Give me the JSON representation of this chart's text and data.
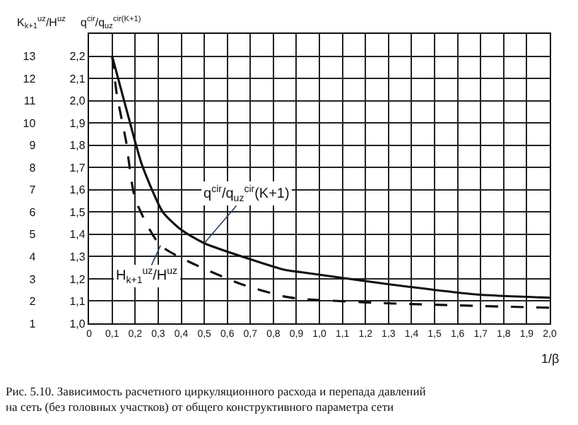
{
  "chart_data": {
    "type": "line",
    "ylabel": "q$^{cir}$/q$_{uz}$$^{cir(K+1)}$",
    "y2label": "K$_{k+1}$$^{uz}$/H$^{uz}$",
    "xlabel": "1/β",
    "x": [
      0.1,
      0.17,
      0.23,
      0.32,
      0.4,
      0.5,
      0.85,
      0.92,
      1.27,
      1.68,
      2.0
    ],
    "series": [
      {
        "color": "#111111",
        "line_style": "solid",
        "values": [
          2.2,
          1.93,
          1.71,
          1.5,
          1.42,
          1.36,
          1.24,
          1.23,
          1.18,
          1.13,
          1.115
        ]
      },
      {
        "color": "#111111",
        "line_style": "dashed",
        "x": [
          0.1,
          0.12,
          0.16,
          0.2,
          0.31,
          0.65,
          0.85,
          0.92,
          1.3,
          2.0
        ],
        "values": [
          2.2,
          2.03,
          1.82,
          1.56,
          1.35,
          1.18,
          1.12,
          1.11,
          1.09,
          1.07
        ]
      }
    ],
    "xlim": [
      0,
      2.0
    ],
    "xticks": [
      0,
      {
        "value": 0.1,
        "label": "0,1"
      },
      {
        "value": 0.2,
        "label": "0,2"
      },
      {
        "value": 0.3,
        "label": "0,3"
      },
      {
        "value": 0.4,
        "label": "0,4"
      },
      {
        "value": 0.5,
        "label": "0,5"
      },
      {
        "value": 0.6,
        "label": "0,6"
      },
      {
        "value": 0.7,
        "label": "0,7"
      },
      {
        "value": 0.8,
        "label": "0,8"
      },
      {
        "value": 0.9,
        "label": "0,9"
      },
      {
        "value": 1.0,
        "label": "1,0"
      },
      {
        "value": 1.1,
        "label": "1,1"
      },
      {
        "value": 1.2,
        "label": "1,2"
      },
      {
        "value": 1.3,
        "label": "1,3"
      },
      {
        "value": 1.4,
        "label": "1,4"
      },
      {
        "value": 1.5,
        "label": "1,5"
      },
      {
        "value": 1.6,
        "label": "1,6"
      },
      {
        "value": 1.7,
        "label": "1,7"
      },
      {
        "value": 1.8,
        "label": "1,8"
      },
      {
        "value": 1.9,
        "label": "1,9"
      },
      {
        "value": 2.0,
        "label": "2,0"
      }
    ],
    "ylim": [
      1.0,
      2.3
    ],
    "yticks": [
      {
        "value": 1.0,
        "label": "1,0"
      },
      {
        "value": 1.1,
        "label": "1,1"
      },
      {
        "value": 1.2,
        "label": "1,2"
      },
      {
        "value": 1.3,
        "label": "1,3"
      },
      {
        "value": 1.4,
        "label": "1,4"
      },
      {
        "value": 1.5,
        "label": "1,5"
      },
      {
        "value": 1.6,
        "label": "1,6"
      },
      {
        "value": 1.7,
        "label": "1,7"
      },
      {
        "value": 1.8,
        "label": "1,8"
      },
      {
        "value": 1.9,
        "label": "1,9"
      },
      {
        "value": 2.0,
        "label": "2,0"
      },
      {
        "value": 2.1,
        "label": "2,1"
      },
      {
        "value": 2.2,
        "label": "2,2"
      }
    ],
    "y2lim": [
      1,
      14
    ],
    "y2ticks": [
      1,
      2,
      3,
      4,
      5,
      6,
      7,
      8,
      9,
      10,
      11,
      12,
      13
    ],
    "grid": true,
    "annotations": [
      {
        "text": "q$^{cir}$/q$_{uz}$$^{cir}$(K+1)",
        "x": 0.5,
        "y": 1.36
      },
      {
        "text": "H$_{k+1}$$^{uz}$/H$^{uz}$",
        "x": 0.31,
        "y": 1.35
      },
      "Рис. 5.10. Зависимость расчетного циркуляционного расхода и перепада давлений на сеть (без головных участков) от общего конструктивного параметра сети"
    ]
  }
}
